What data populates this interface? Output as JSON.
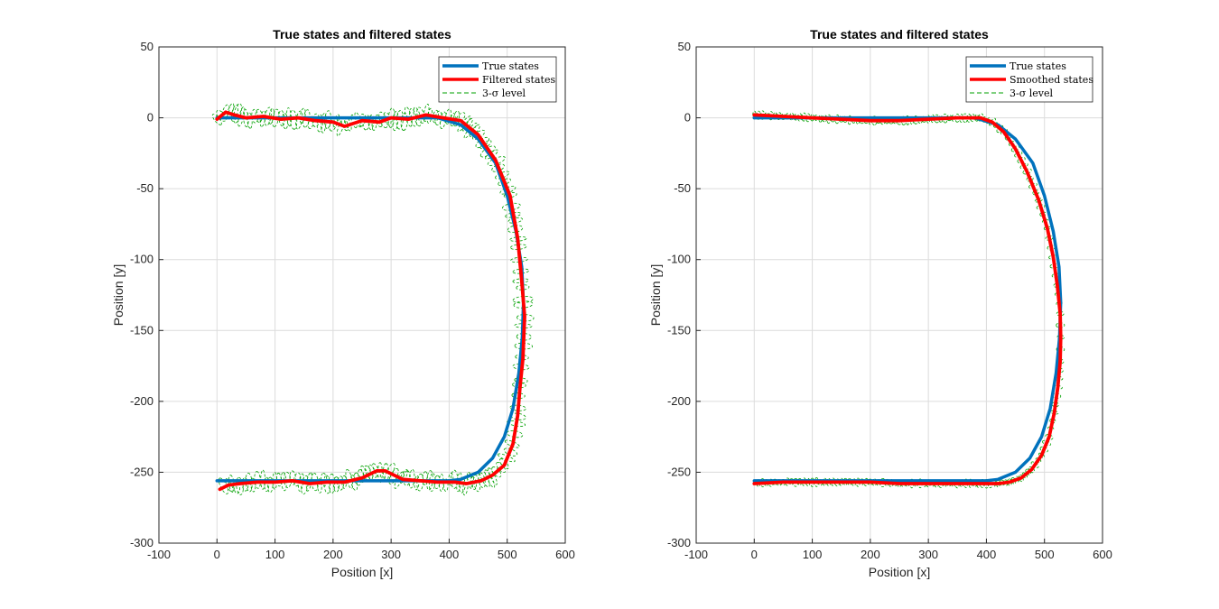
{
  "chart_data": [
    {
      "type": "line",
      "title": "True states and filtered states",
      "xlabel": "Position [x]",
      "ylabel": "Position [y]",
      "xlim": [
        -100,
        600
      ],
      "ylim": [
        -300,
        50
      ],
      "xticks": [
        "-100",
        "0",
        "100",
        "200",
        "300",
        "400",
        "500",
        "600"
      ],
      "yticks": [
        "50",
        "0",
        "-50",
        "-100",
        "-150",
        "-200",
        "-250",
        "-300"
      ],
      "grid": true,
      "legend_position": "top-right",
      "series": [
        {
          "name": "True states",
          "color": "#0072BD",
          "style": "solid",
          "x": [
            0,
            100,
            200,
            300,
            380,
            420,
            450,
            480,
            500,
            515,
            525,
            528,
            526,
            520,
            510,
            495,
            475,
            450,
            420,
            400,
            300,
            200,
            100,
            0
          ],
          "y": [
            0,
            0,
            0,
            0,
            0,
            -5,
            -15,
            -32,
            -55,
            -80,
            -105,
            -130,
            -155,
            -180,
            -205,
            -225,
            -240,
            -250,
            -255,
            -256,
            -256,
            -256,
            -256,
            -256
          ]
        },
        {
          "name": "Filtered states",
          "color": "#FF0000",
          "style": "solid",
          "x": [
            0,
            15,
            30,
            50,
            80,
            110,
            140,
            170,
            200,
            220,
            250,
            280,
            300,
            330,
            360,
            390,
            420,
            450,
            480,
            505,
            518,
            525,
            530,
            527,
            522,
            518,
            510,
            495,
            475,
            455,
            430,
            410,
            380,
            350,
            320,
            290,
            275,
            250,
            220,
            190,
            160,
            130,
            100,
            70,
            40,
            20,
            5
          ],
          "y": [
            -1,
            4,
            2,
            0,
            1,
            -1,
            0,
            -2,
            -3,
            -6,
            -2,
            -3,
            0,
            -1,
            2,
            0,
            -2,
            -12,
            -30,
            -55,
            -85,
            -115,
            -140,
            -170,
            -190,
            -210,
            -230,
            -245,
            -252,
            -256,
            -258,
            -257,
            -257,
            -256,
            -255,
            -249,
            -249,
            -254,
            -257,
            -257,
            -258,
            -256,
            -257,
            -257,
            -258,
            -259,
            -262
          ]
        },
        {
          "name": "3-σ level",
          "color": "#00A000",
          "style": "dashed",
          "x": [
            0,
            15,
            30,
            50,
            80,
            110,
            140,
            170,
            200,
            220,
            250,
            280,
            300,
            330,
            360,
            390,
            420,
            450,
            480,
            505,
            518,
            525,
            530,
            527,
            522,
            518,
            510,
            495,
            475,
            455,
            430,
            410,
            380,
            350,
            320,
            290,
            275,
            250,
            220,
            190,
            160,
            130,
            100,
            70,
            40,
            20,
            5
          ],
          "y": [
            -1,
            4,
            2,
            0,
            1,
            -1,
            0,
            -2,
            -3,
            -6,
            -2,
            -3,
            0,
            -1,
            2,
            0,
            -2,
            -12,
            -30,
            -55,
            -85,
            -115,
            -140,
            -170,
            -190,
            -210,
            -230,
            -245,
            -252,
            -256,
            -258,
            -257,
            -257,
            -256,
            -255,
            -249,
            -249,
            -254,
            -257,
            -257,
            -258,
            -256,
            -257,
            -257,
            -258,
            -259,
            -262
          ]
        }
      ]
    },
    {
      "type": "line",
      "title": "True states and filtered states",
      "xlabel": "Position [x]",
      "ylabel": "Position [y]",
      "xlim": [
        -100,
        600
      ],
      "ylim": [
        -300,
        50
      ],
      "xticks": [
        "-100",
        "0",
        "100",
        "200",
        "300",
        "400",
        "500",
        "600"
      ],
      "yticks": [
        "50",
        "0",
        "-50",
        "-100",
        "-150",
        "-200",
        "-250",
        "-300"
      ],
      "grid": true,
      "legend_position": "top-right",
      "series": [
        {
          "name": "True states",
          "color": "#0072BD",
          "style": "solid",
          "x": [
            0,
            100,
            200,
            300,
            380,
            420,
            450,
            480,
            500,
            515,
            525,
            528,
            526,
            520,
            510,
            495,
            475,
            450,
            420,
            400,
            300,
            200,
            100,
            0
          ],
          "y": [
            0,
            0,
            0,
            0,
            0,
            -5,
            -15,
            -32,
            -55,
            -80,
            -105,
            -130,
            -155,
            -180,
            -205,
            -225,
            -240,
            -250,
            -255,
            -256,
            -256,
            -256,
            -256,
            -256
          ]
        },
        {
          "name": "Smoothed states",
          "color": "#FF0000",
          "style": "solid",
          "x": [
            0,
            50,
            100,
            150,
            200,
            250,
            300,
            350,
            390,
            410,
            430,
            450,
            470,
            490,
            505,
            515,
            522,
            527,
            528,
            527,
            523,
            517,
            508,
            495,
            478,
            460,
            440,
            420,
            400,
            380,
            350,
            300,
            250,
            200,
            150,
            100,
            50,
            0
          ],
          "y": [
            2,
            1,
            0,
            -1,
            -2,
            -2,
            -1,
            0,
            0,
            -3,
            -10,
            -22,
            -38,
            -58,
            -78,
            -98,
            -118,
            -138,
            -155,
            -172,
            -190,
            -208,
            -225,
            -238,
            -248,
            -254,
            -257,
            -258,
            -258,
            -258,
            -258,
            -258,
            -258,
            -257,
            -257,
            -257,
            -257,
            -258
          ]
        },
        {
          "name": "3-σ level",
          "color": "#00A000",
          "style": "dashed",
          "x": [
            0,
            50,
            100,
            150,
            200,
            250,
            300,
            350,
            390,
            410,
            430,
            450,
            470,
            490,
            505,
            515,
            522,
            527,
            528,
            527,
            523,
            517,
            508,
            495,
            478,
            460,
            440,
            420,
            400,
            380,
            350,
            300,
            250,
            200,
            150,
            100,
            50,
            0
          ],
          "y": [
            2,
            1,
            0,
            -1,
            -2,
            -2,
            -1,
            0,
            0,
            -3,
            -10,
            -22,
            -38,
            -58,
            -78,
            -98,
            -118,
            -138,
            -155,
            -172,
            -190,
            -208,
            -225,
            -238,
            -248,
            -254,
            -257,
            -258,
            -258,
            -258,
            -258,
            -258,
            -258,
            -257,
            -257,
            -257,
            -257,
            -258
          ]
        }
      ]
    }
  ]
}
